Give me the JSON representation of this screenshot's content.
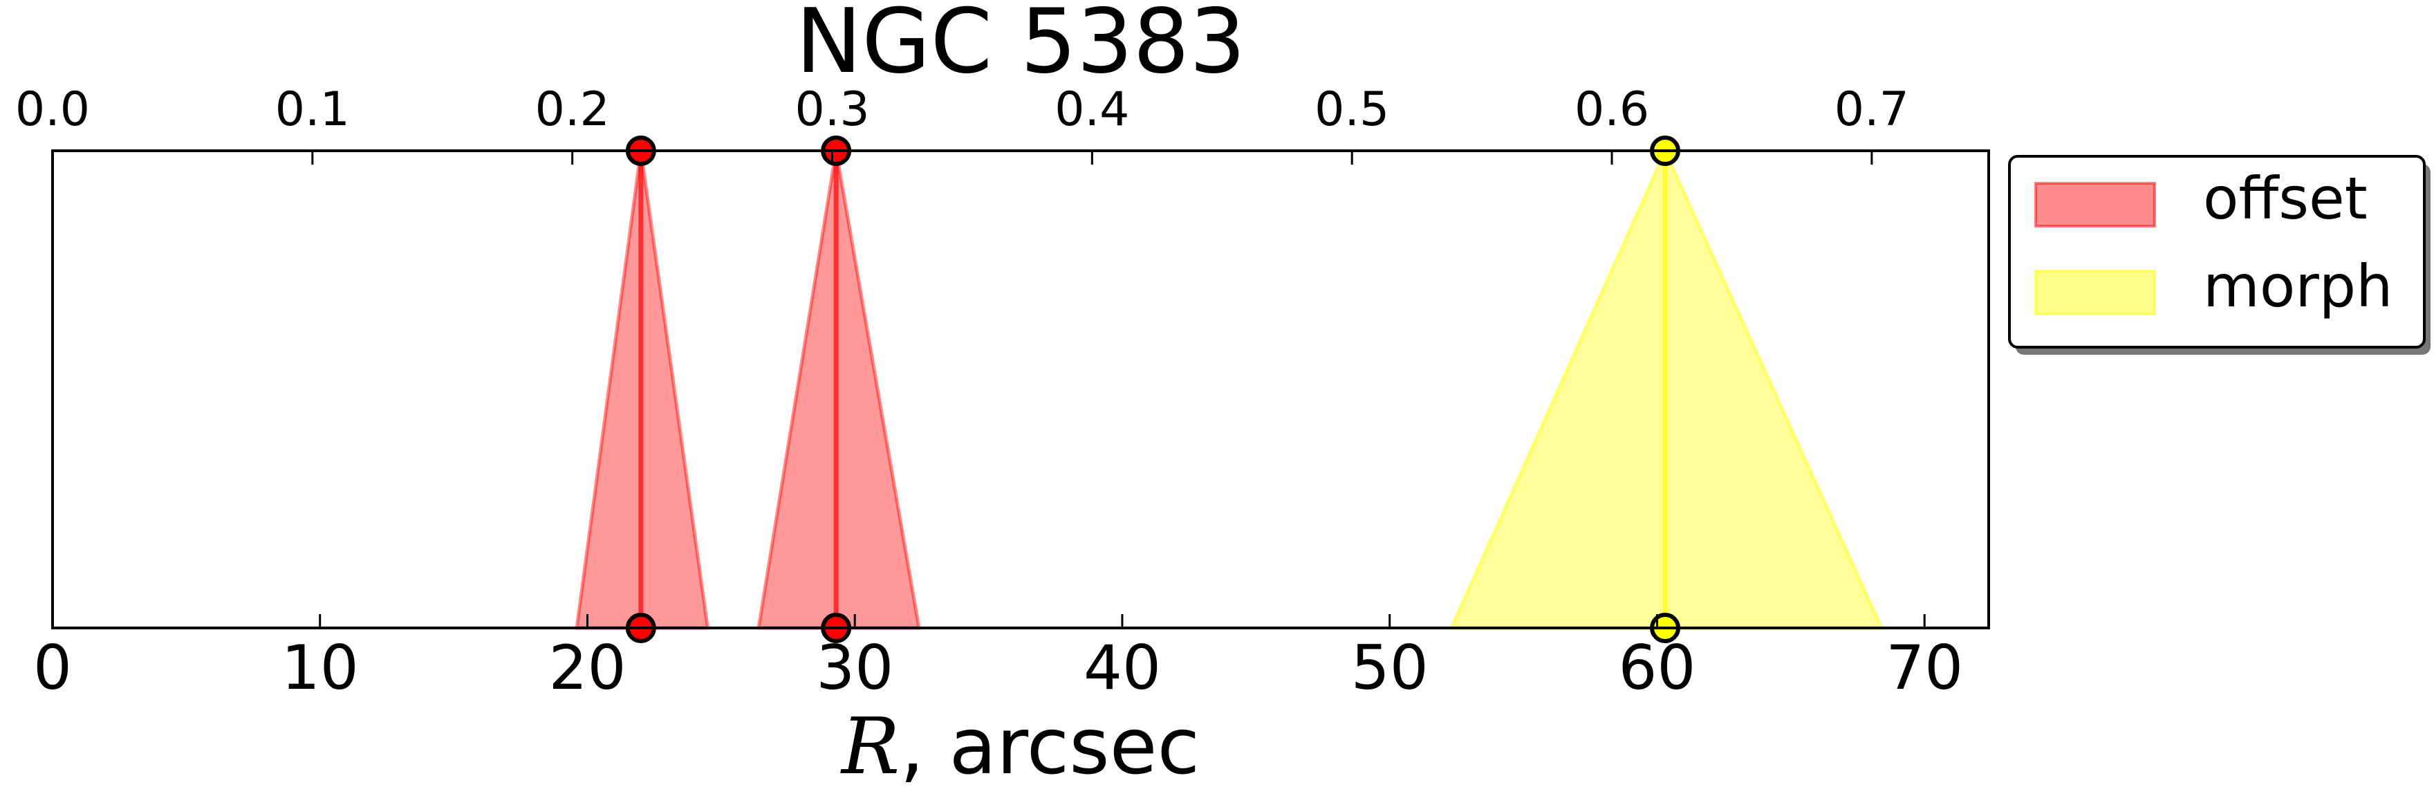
{
  "chart_data": {
    "type": "area",
    "title": "NGC 5383",
    "xlabel": "R, arcsec",
    "xlabel_italic_part": "R",
    "xlabel_rest": ", arcsec",
    "xlim": [
      0,
      72.4
    ],
    "ylim": [
      0,
      1
    ],
    "grid": false,
    "legend_placement": "outside-right",
    "bottom_ticks": [
      0,
      10,
      20,
      30,
      40,
      50,
      60,
      70
    ],
    "top_axis": {
      "unit_factor_per_arcsec": 0.01029,
      "ticks": [
        "0.0",
        "0.1",
        "0.2",
        "0.3",
        "0.4",
        "0.5",
        "0.6",
        "0.7"
      ]
    },
    "series": [
      {
        "name": "offset",
        "color": "#ff0000",
        "triangles": [
          {
            "center": 22.0,
            "left": 19.6,
            "right": 24.5
          },
          {
            "center": 29.3,
            "left": 26.4,
            "right": 32.4
          }
        ]
      },
      {
        "name": "morph",
        "color": "#ffff00",
        "triangles": [
          {
            "center": 60.3,
            "left": 52.3,
            "right": 68.4
          }
        ]
      }
    ]
  },
  "legend": {
    "items": [
      {
        "label": "offset",
        "color": "#ff0000"
      },
      {
        "label": "morph",
        "color": "#ffff00"
      }
    ]
  }
}
